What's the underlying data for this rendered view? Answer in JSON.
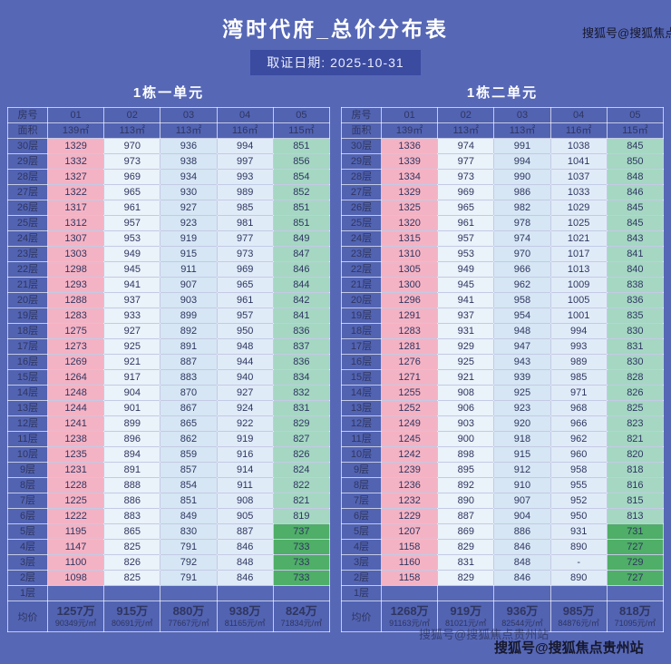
{
  "page": {
    "title": "湾时代府_总价分布表",
    "date": "取证日期: 2025-10-31",
    "watermark": "搜狐号@搜狐焦点贵州站"
  },
  "colors": {
    "page_bg": "#5667b6",
    "date_badge_bg": "#3b4ba0",
    "header_cell_bg": "#5263b2",
    "col_01_pink": "#f4b3c4",
    "col_02_light": "#eaf2fa",
    "col_03_blue": "#d6e6f4",
    "col_04_blue": "#e0ebf8",
    "col_05_teal": "#a5d7c3",
    "col_05_green": "#4fae67"
  },
  "chart_data": [
    {
      "type": "table",
      "title": "1栋一单元",
      "room_header": {
        "label": "房号",
        "cols": [
          "01",
          "02",
          "03",
          "04",
          "05"
        ]
      },
      "area_header": {
        "label": "面积",
        "cols": [
          "139㎡",
          "113㎡",
          "113㎡",
          "116㎡",
          "115㎡"
        ]
      },
      "floors": [
        {
          "label": "30层",
          "values": [
            "1329",
            "970",
            "936",
            "994",
            "851"
          ]
        },
        {
          "label": "29层",
          "values": [
            "1332",
            "973",
            "938",
            "997",
            "856"
          ]
        },
        {
          "label": "28层",
          "values": [
            "1327",
            "969",
            "934",
            "993",
            "854"
          ]
        },
        {
          "label": "27层",
          "values": [
            "1322",
            "965",
            "930",
            "989",
            "852"
          ]
        },
        {
          "label": "26层",
          "values": [
            "1317",
            "961",
            "927",
            "985",
            "851"
          ]
        },
        {
          "label": "25层",
          "values": [
            "1312",
            "957",
            "923",
            "981",
            "851"
          ]
        },
        {
          "label": "24层",
          "values": [
            "1307",
            "953",
            "919",
            "977",
            "849"
          ]
        },
        {
          "label": "23层",
          "values": [
            "1303",
            "949",
            "915",
            "973",
            "847"
          ]
        },
        {
          "label": "22层",
          "values": [
            "1298",
            "945",
            "911",
            "969",
            "846"
          ]
        },
        {
          "label": "21层",
          "values": [
            "1293",
            "941",
            "907",
            "965",
            "844"
          ]
        },
        {
          "label": "20层",
          "values": [
            "1288",
            "937",
            "903",
            "961",
            "842"
          ]
        },
        {
          "label": "19层",
          "values": [
            "1283",
            "933",
            "899",
            "957",
            "841"
          ]
        },
        {
          "label": "18层",
          "values": [
            "1275",
            "927",
            "892",
            "950",
            "836"
          ]
        },
        {
          "label": "17层",
          "values": [
            "1273",
            "925",
            "891",
            "948",
            "837"
          ]
        },
        {
          "label": "16层",
          "values": [
            "1269",
            "921",
            "887",
            "944",
            "836"
          ]
        },
        {
          "label": "15层",
          "values": [
            "1264",
            "917",
            "883",
            "940",
            "834"
          ]
        },
        {
          "label": "14层",
          "values": [
            "1248",
            "904",
            "870",
            "927",
            "832"
          ]
        },
        {
          "label": "13层",
          "values": [
            "1244",
            "901",
            "867",
            "924",
            "831"
          ]
        },
        {
          "label": "12层",
          "values": [
            "1241",
            "899",
            "865",
            "922",
            "829"
          ]
        },
        {
          "label": "11层",
          "values": [
            "1238",
            "896",
            "862",
            "919",
            "827"
          ]
        },
        {
          "label": "10层",
          "values": [
            "1235",
            "894",
            "859",
            "916",
            "826"
          ]
        },
        {
          "label": "9层",
          "values": [
            "1231",
            "891",
            "857",
            "914",
            "824"
          ]
        },
        {
          "label": "8层",
          "values": [
            "1228",
            "888",
            "854",
            "911",
            "822"
          ]
        },
        {
          "label": "7层",
          "values": [
            "1225",
            "886",
            "851",
            "908",
            "821"
          ]
        },
        {
          "label": "6层",
          "values": [
            "1222",
            "883",
            "849",
            "905",
            "819"
          ]
        },
        {
          "label": "5层",
          "values": [
            "1195",
            "865",
            "830",
            "887",
            "737"
          ]
        },
        {
          "label": "4层",
          "values": [
            "1147",
            "825",
            "791",
            "846",
            "733"
          ]
        },
        {
          "label": "3层",
          "values": [
            "1100",
            "826",
            "792",
            "848",
            "733"
          ]
        },
        {
          "label": "2层",
          "values": [
            "1098",
            "825",
            "791",
            "846",
            "733"
          ]
        },
        {
          "label": "1层",
          "values": [
            "",
            "",
            "",
            "",
            ""
          ]
        }
      ],
      "green_floors": [
        "5层",
        "4层",
        "3层",
        "2层"
      ],
      "avg": {
        "label": "均价",
        "prices": [
          "1257万",
          "915万",
          "880万",
          "938万",
          "824万"
        ],
        "unit_prices": [
          "90349元/㎡",
          "80691元/㎡",
          "77667元/㎡",
          "81165元/㎡",
          "71834元/㎡"
        ]
      }
    },
    {
      "type": "table",
      "title": "1栋二单元",
      "room_header": {
        "label": "房号",
        "cols": [
          "01",
          "02",
          "03",
          "04",
          "05"
        ]
      },
      "area_header": {
        "label": "面积",
        "cols": [
          "139㎡",
          "113㎡",
          "113㎡",
          "116㎡",
          "115㎡"
        ]
      },
      "floors": [
        {
          "label": "30层",
          "values": [
            "1336",
            "974",
            "991",
            "1038",
            "845"
          ]
        },
        {
          "label": "29层",
          "values": [
            "1339",
            "977",
            "994",
            "1041",
            "850"
          ]
        },
        {
          "label": "28层",
          "values": [
            "1334",
            "973",
            "990",
            "1037",
            "848"
          ]
        },
        {
          "label": "27层",
          "values": [
            "1329",
            "969",
            "986",
            "1033",
            "846"
          ]
        },
        {
          "label": "26层",
          "values": [
            "1325",
            "965",
            "982",
            "1029",
            "845"
          ]
        },
        {
          "label": "25层",
          "values": [
            "1320",
            "961",
            "978",
            "1025",
            "845"
          ]
        },
        {
          "label": "24层",
          "values": [
            "1315",
            "957",
            "974",
            "1021",
            "843"
          ]
        },
        {
          "label": "23层",
          "values": [
            "1310",
            "953",
            "970",
            "1017",
            "841"
          ]
        },
        {
          "label": "22层",
          "values": [
            "1305",
            "949",
            "966",
            "1013",
            "840"
          ]
        },
        {
          "label": "21层",
          "values": [
            "1300",
            "945",
            "962",
            "1009",
            "838"
          ]
        },
        {
          "label": "20层",
          "values": [
            "1296",
            "941",
            "958",
            "1005",
            "836"
          ]
        },
        {
          "label": "19层",
          "values": [
            "1291",
            "937",
            "954",
            "1001",
            "835"
          ]
        },
        {
          "label": "18层",
          "values": [
            "1283",
            "931",
            "948",
            "994",
            "830"
          ]
        },
        {
          "label": "17层",
          "values": [
            "1281",
            "929",
            "947",
            "993",
            "831"
          ]
        },
        {
          "label": "16层",
          "values": [
            "1276",
            "925",
            "943",
            "989",
            "830"
          ]
        },
        {
          "label": "15层",
          "values": [
            "1271",
            "921",
            "939",
            "985",
            "828"
          ]
        },
        {
          "label": "14层",
          "values": [
            "1255",
            "908",
            "925",
            "971",
            "826"
          ]
        },
        {
          "label": "13层",
          "values": [
            "1252",
            "906",
            "923",
            "968",
            "825"
          ]
        },
        {
          "label": "12层",
          "values": [
            "1249",
            "903",
            "920",
            "966",
            "823"
          ]
        },
        {
          "label": "11层",
          "values": [
            "1245",
            "900",
            "918",
            "962",
            "821"
          ]
        },
        {
          "label": "10层",
          "values": [
            "1242",
            "898",
            "915",
            "960",
            "820"
          ]
        },
        {
          "label": "9层",
          "values": [
            "1239",
            "895",
            "912",
            "958",
            "818"
          ]
        },
        {
          "label": "8层",
          "values": [
            "1236",
            "892",
            "910",
            "955",
            "816"
          ]
        },
        {
          "label": "7层",
          "values": [
            "1232",
            "890",
            "907",
            "952",
            "815"
          ]
        },
        {
          "label": "6层",
          "values": [
            "1229",
            "887",
            "904",
            "950",
            "813"
          ]
        },
        {
          "label": "5层",
          "values": [
            "1207",
            "869",
            "886",
            "931",
            "731"
          ]
        },
        {
          "label": "4层",
          "values": [
            "1158",
            "829",
            "846",
            "890",
            "727"
          ]
        },
        {
          "label": "3层",
          "values": [
            "1160",
            "831",
            "848",
            "-",
            "729"
          ]
        },
        {
          "label": "2层",
          "values": [
            "1158",
            "829",
            "846",
            "890",
            "727"
          ]
        },
        {
          "label": "1层",
          "values": [
            "",
            "",
            "",
            "",
            ""
          ]
        }
      ],
      "green_floors": [
        "5层",
        "4层",
        "3层",
        "2层"
      ],
      "avg": {
        "label": "均价",
        "prices": [
          "1268万",
          "919万",
          "936万",
          "985万",
          "818万"
        ],
        "unit_prices": [
          "91163元/㎡",
          "81021元/㎡",
          "82544元/㎡",
          "84876元/㎡",
          "71095元/㎡"
        ]
      }
    }
  ]
}
